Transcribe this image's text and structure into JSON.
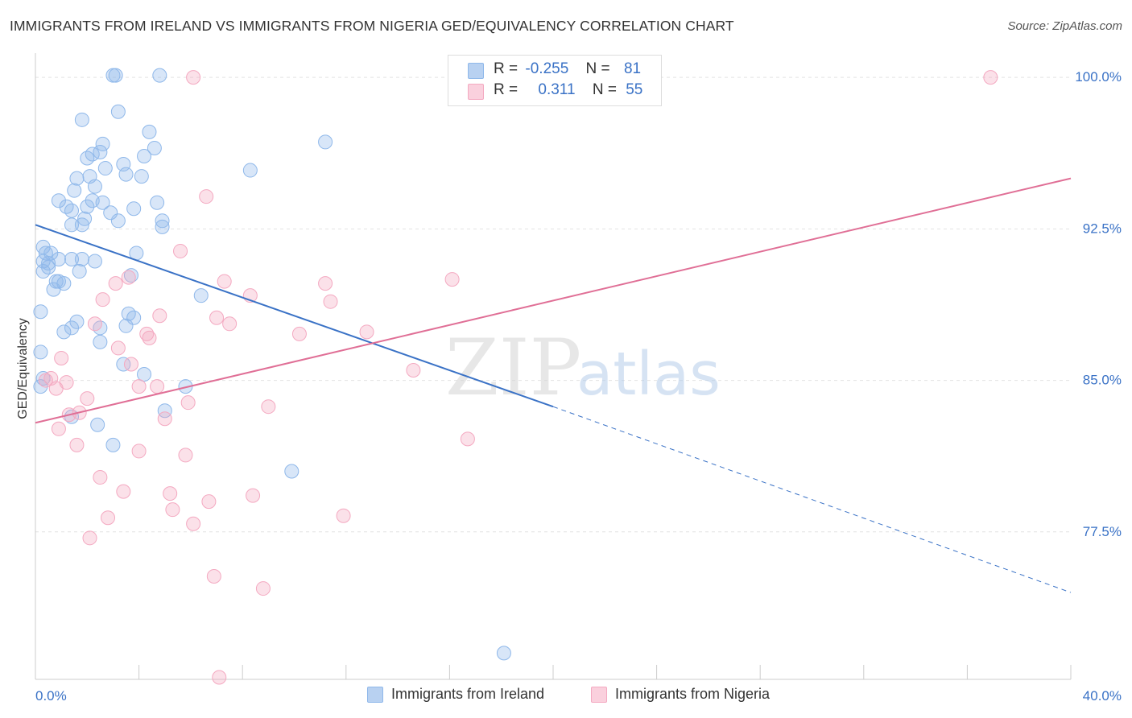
{
  "title": "IMMIGRANTS FROM IRELAND VS IMMIGRANTS FROM NIGERIA GED/EQUIVALENCY CORRELATION CHART",
  "source": "Source: ZipAtlas.com",
  "watermark": {
    "zip": "ZIP",
    "atlas": "atlas"
  },
  "legend": {
    "rows": [
      {
        "r_label": "R =",
        "r_value": "-0.255",
        "n_label": "N =",
        "n_value": "81"
      },
      {
        "r_label": "R =",
        "r_value": "0.311",
        "n_label": "N =",
        "n_value": "55"
      }
    ]
  },
  "chart_data": {
    "type": "scatter",
    "title": "IMMIGRANTS FROM IRELAND VS IMMIGRANTS FROM NIGERIA GED/EQUIVALENCY CORRELATION CHART",
    "xlabel": "",
    "ylabel": "GED/Equivalency",
    "xlim": [
      0,
      40
    ],
    "ylim": [
      70.2,
      101.2
    ],
    "x_tick_labels": [
      "0.0%",
      "40.0%"
    ],
    "y_ticks": [
      77.5,
      85.0,
      92.5,
      100.0
    ],
    "y_tick_labels": [
      "77.5%",
      "85.0%",
      "92.5%",
      "100.0%"
    ],
    "grid": true,
    "legend_position": "top-center",
    "series": [
      {
        "name": "Immigrants from Ireland",
        "color": "#8fb8ea",
        "line_color": "#3a72c6",
        "R": -0.255,
        "N": 81,
        "trend": {
          "x0": 0.0,
          "y0": 92.7,
          "x1": 20.0,
          "y1": 83.7,
          "dashed_to_x": 40.0,
          "dashed_to_y": 74.5
        },
        "points": [
          [
            3.0,
            100.1
          ],
          [
            3.1,
            100.1
          ],
          [
            4.8,
            100.1
          ],
          [
            3.2,
            98.3
          ],
          [
            1.8,
            97.9
          ],
          [
            4.4,
            97.3
          ],
          [
            2.6,
            96.7
          ],
          [
            11.2,
            96.8
          ],
          [
            2.0,
            96.0
          ],
          [
            2.2,
            96.2
          ],
          [
            2.5,
            96.3
          ],
          [
            4.2,
            96.1
          ],
          [
            4.6,
            96.5
          ],
          [
            2.7,
            95.5
          ],
          [
            3.4,
            95.7
          ],
          [
            2.1,
            95.1
          ],
          [
            3.5,
            95.2
          ],
          [
            1.6,
            95.0
          ],
          [
            4.1,
            95.1
          ],
          [
            8.3,
            95.4
          ],
          [
            2.3,
            94.6
          ],
          [
            1.5,
            94.4
          ],
          [
            0.9,
            93.9
          ],
          [
            2.2,
            93.9
          ],
          [
            1.2,
            93.6
          ],
          [
            1.4,
            93.4
          ],
          [
            2.0,
            93.6
          ],
          [
            2.6,
            93.8
          ],
          [
            2.9,
            93.3
          ],
          [
            3.8,
            93.5
          ],
          [
            4.7,
            93.8
          ],
          [
            1.9,
            93.0
          ],
          [
            3.2,
            92.9
          ],
          [
            4.9,
            92.9
          ],
          [
            1.4,
            92.7
          ],
          [
            1.8,
            92.7
          ],
          [
            4.9,
            92.6
          ],
          [
            0.3,
            91.6
          ],
          [
            0.4,
            91.3
          ],
          [
            0.6,
            91.3
          ],
          [
            0.3,
            90.9
          ],
          [
            0.5,
            90.8
          ],
          [
            0.9,
            91.0
          ],
          [
            1.4,
            91.0
          ],
          [
            1.8,
            91.0
          ],
          [
            2.3,
            90.9
          ],
          [
            3.9,
            91.3
          ],
          [
            0.5,
            90.6
          ],
          [
            0.3,
            90.4
          ],
          [
            1.7,
            90.4
          ],
          [
            3.7,
            90.2
          ],
          [
            0.8,
            89.9
          ],
          [
            0.9,
            89.9
          ],
          [
            1.1,
            89.8
          ],
          [
            0.7,
            89.5
          ],
          [
            6.4,
            89.2
          ],
          [
            0.2,
            88.4
          ],
          [
            3.6,
            88.3
          ],
          [
            3.8,
            88.1
          ],
          [
            1.6,
            87.9
          ],
          [
            1.4,
            87.6
          ],
          [
            3.5,
            87.7
          ],
          [
            1.1,
            87.4
          ],
          [
            2.5,
            87.6
          ],
          [
            2.5,
            86.9
          ],
          [
            0.2,
            86.4
          ],
          [
            3.4,
            85.8
          ],
          [
            4.2,
            85.3
          ],
          [
            0.3,
            85.1
          ],
          [
            0.2,
            84.7
          ],
          [
            5.8,
            84.7
          ],
          [
            5.0,
            83.5
          ],
          [
            1.4,
            83.2
          ],
          [
            2.4,
            82.8
          ],
          [
            3.0,
            81.8
          ],
          [
            9.9,
            80.5
          ],
          [
            18.1,
            71.5
          ]
        ]
      },
      {
        "name": "Immigrants from Nigeria",
        "color": "#f4a9c1",
        "line_color": "#e06f96",
        "R": 0.311,
        "N": 55,
        "trend": {
          "x0": 0.0,
          "y0": 82.9,
          "x1": 40.0,
          "y1": 95.0
        },
        "points": [
          [
            6.1,
            100.0
          ],
          [
            36.9,
            100.0
          ],
          [
            6.6,
            94.1
          ],
          [
            5.6,
            91.4
          ],
          [
            3.6,
            90.1
          ],
          [
            7.3,
            89.9
          ],
          [
            16.1,
            90.0
          ],
          [
            3.1,
            89.8
          ],
          [
            11.2,
            89.8
          ],
          [
            2.6,
            89.0
          ],
          [
            8.3,
            89.2
          ],
          [
            11.4,
            88.9
          ],
          [
            4.8,
            88.2
          ],
          [
            7.0,
            88.1
          ],
          [
            2.3,
            87.8
          ],
          [
            7.5,
            87.8
          ],
          [
            4.3,
            87.3
          ],
          [
            4.4,
            87.1
          ],
          [
            10.2,
            87.3
          ],
          [
            12.8,
            87.4
          ],
          [
            3.2,
            86.6
          ],
          [
            1.0,
            86.1
          ],
          [
            3.7,
            85.8
          ],
          [
            14.6,
            85.5
          ],
          [
            0.4,
            85.0
          ],
          [
            0.6,
            85.1
          ],
          [
            0.8,
            84.6
          ],
          [
            1.2,
            84.9
          ],
          [
            4.0,
            84.7
          ],
          [
            4.7,
            84.7
          ],
          [
            2.0,
            84.1
          ],
          [
            5.9,
            83.9
          ],
          [
            9.0,
            83.7
          ],
          [
            1.7,
            83.4
          ],
          [
            1.3,
            83.3
          ],
          [
            5.0,
            83.1
          ],
          [
            0.9,
            82.6
          ],
          [
            16.7,
            82.1
          ],
          [
            1.6,
            81.8
          ],
          [
            4.0,
            81.5
          ],
          [
            5.8,
            81.3
          ],
          [
            2.5,
            80.2
          ],
          [
            3.4,
            79.5
          ],
          [
            5.2,
            79.4
          ],
          [
            6.7,
            79.0
          ],
          [
            8.4,
            79.3
          ],
          [
            5.3,
            78.6
          ],
          [
            11.9,
            78.3
          ],
          [
            2.8,
            78.2
          ],
          [
            6.1,
            77.9
          ],
          [
            2.1,
            77.2
          ],
          [
            6.9,
            75.3
          ],
          [
            8.8,
            74.7
          ],
          [
            7.1,
            70.3
          ]
        ]
      }
    ]
  },
  "bottom_legend": [
    {
      "label": "Immigrants from Ireland"
    },
    {
      "label": "Immigrants from Nigeria"
    }
  ]
}
